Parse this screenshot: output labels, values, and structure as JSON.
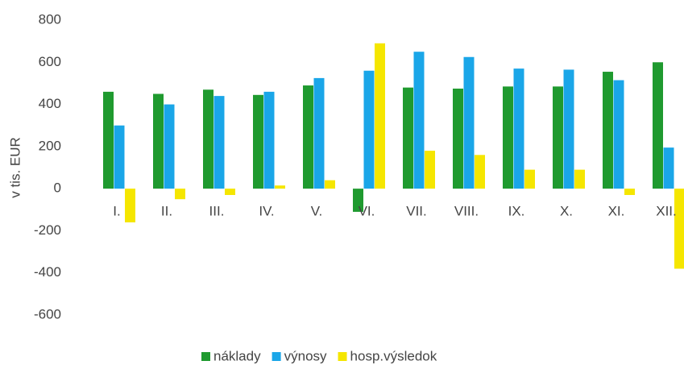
{
  "chart_data": {
    "type": "bar",
    "y_label": "v tis. EUR",
    "categories": [
      "I.",
      "II.",
      "III.",
      "IV.",
      "V.",
      "VI.",
      "VII.",
      "VIII.",
      "IX.",
      "X.",
      "XI.",
      "XII."
    ],
    "series": [
      {
        "name": "náklady",
        "color": "#1f9a2f",
        "values": [
          460,
          450,
          470,
          445,
          490,
          -110,
          480,
          475,
          485,
          485,
          555,
          600
        ]
      },
      {
        "name": "výnosy",
        "color": "#1aa6e8",
        "values": [
          300,
          400,
          440,
          460,
          525,
          560,
          650,
          625,
          570,
          565,
          515,
          195
        ]
      },
      {
        "name": "hosp.výsledok",
        "color": "#f5e600",
        "values": [
          -160,
          -50,
          -30,
          15,
          40,
          690,
          180,
          160,
          90,
          90,
          -30,
          -380
        ]
      }
    ],
    "ylim": [
      -600,
      800
    ],
    "yticks": [
      -600,
      -400,
      -200,
      0,
      200,
      400,
      600,
      800
    ],
    "legend": "bottom"
  }
}
